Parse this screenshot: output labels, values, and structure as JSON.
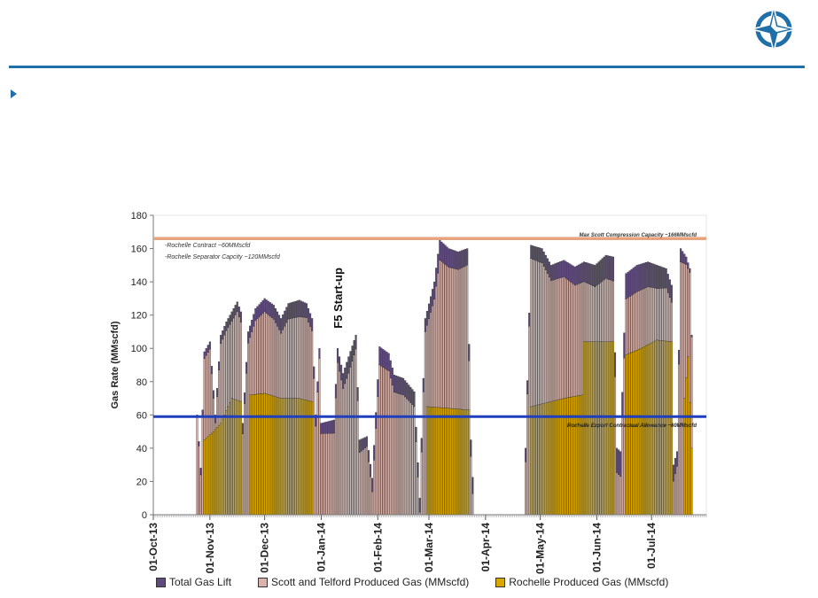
{
  "logo_icon": "compass-star-icon",
  "colors": {
    "header_rule": "#1f6fa8",
    "gas_lift": "#5e4a7c",
    "scott_telford": "#d9b4ac",
    "rochelle": "#d9a800",
    "max_compression_line": "#e9a37c",
    "export_line": "#1f3fbf"
  },
  "chart_data": {
    "type": "bar",
    "stacked": true,
    "ylabel": "Gas Rate (MMscfd)",
    "ylim": [
      0,
      180
    ],
    "yticks": [
      0,
      20,
      40,
      60,
      80,
      100,
      120,
      140,
      160,
      180
    ],
    "xlim": [
      "2013-10-01",
      "2014-07-31"
    ],
    "xtick_labels": [
      "01-Oct-13",
      "01-Nov-13",
      "01-Dec-13",
      "01-Jan-14",
      "01-Feb-14",
      "01-Mar-14",
      "01-Apr-14",
      "01-May-14",
      "01-Jun-14",
      "01-Jul-14"
    ],
    "xtick_dates": [
      "2013-10-01",
      "2013-11-01",
      "2013-12-01",
      "2014-01-01",
      "2014-02-01",
      "2014-03-01",
      "2014-04-01",
      "2014-05-01",
      "2014-06-01",
      "2014-07-01"
    ],
    "series": [
      {
        "name": "Total Gas Lift",
        "color": "#5e4a7c"
      },
      {
        "name": "Scott and Telford Produced Gas (MMscfd)",
        "color": "#d9b4ac"
      },
      {
        "name": "Rochelle Produced Gas (MMscfd)",
        "color": "#d9a800"
      }
    ],
    "total_profile": [
      {
        "x": "2013-10-24",
        "y": 0
      },
      {
        "x": "2013-10-25",
        "y": 60
      },
      {
        "x": "2013-10-27",
        "y": 28
      },
      {
        "x": "2013-10-29",
        "y": 98
      },
      {
        "x": "2013-11-01",
        "y": 104
      },
      {
        "x": "2013-11-04",
        "y": 60
      },
      {
        "x": "2013-11-07",
        "y": 108
      },
      {
        "x": "2013-11-10",
        "y": 116
      },
      {
        "x": "2013-11-13",
        "y": 122
      },
      {
        "x": "2013-11-16",
        "y": 128
      },
      {
        "x": "2013-11-18",
        "y": 122
      },
      {
        "x": "2013-11-19",
        "y": 55
      },
      {
        "x": "2013-11-22",
        "y": 110
      },
      {
        "x": "2013-11-26",
        "y": 124
      },
      {
        "x": "2013-12-01",
        "y": 130
      },
      {
        "x": "2013-12-06",
        "y": 126
      },
      {
        "x": "2013-12-10",
        "y": 118
      },
      {
        "x": "2013-12-14",
        "y": 127
      },
      {
        "x": "2013-12-20",
        "y": 129
      },
      {
        "x": "2013-12-24",
        "y": 127
      },
      {
        "x": "2013-12-27",
        "y": 118
      },
      {
        "x": "2013-12-29",
        "y": 60
      },
      {
        "x": "2013-12-31",
        "y": 100
      },
      {
        "x": "2014-01-01",
        "y": 55
      },
      {
        "x": "2014-01-08",
        "y": 57
      },
      {
        "x": "2014-01-10",
        "y": 100
      },
      {
        "x": "2014-01-13",
        "y": 85
      },
      {
        "x": "2014-01-16",
        "y": 95
      },
      {
        "x": "2014-01-20",
        "y": 108
      },
      {
        "x": "2014-01-22",
        "y": 45
      },
      {
        "x": "2014-01-26",
        "y": 47
      },
      {
        "x": "2014-01-29",
        "y": 22
      },
      {
        "x": "2014-02-02",
        "y": 101
      },
      {
        "x": "2014-02-07",
        "y": 97
      },
      {
        "x": "2014-02-10",
        "y": 84
      },
      {
        "x": "2014-02-15",
        "y": 82
      },
      {
        "x": "2014-02-18",
        "y": 78
      },
      {
        "x": "2014-02-21",
        "y": 74
      },
      {
        "x": "2014-02-24",
        "y": 10
      },
      {
        "x": "2014-02-27",
        "y": 118
      },
      {
        "x": "2014-03-04",
        "y": 140
      },
      {
        "x": "2014-03-07",
        "y": 165
      },
      {
        "x": "2014-03-12",
        "y": 160
      },
      {
        "x": "2014-03-17",
        "y": 158
      },
      {
        "x": "2014-03-22",
        "y": 160
      },
      {
        "x": "2014-03-24",
        "y": 45
      },
      {
        "x": "2014-03-26",
        "y": 0
      },
      {
        "x": "2014-04-22",
        "y": 0
      },
      {
        "x": "2014-04-23",
        "y": 40
      },
      {
        "x": "2014-04-26",
        "y": 162
      },
      {
        "x": "2014-05-02",
        "y": 160
      },
      {
        "x": "2014-05-07",
        "y": 150
      },
      {
        "x": "2014-05-14",
        "y": 153
      },
      {
        "x": "2014-05-20",
        "y": 149
      },
      {
        "x": "2014-05-25",
        "y": 152
      },
      {
        "x": "2014-05-31",
        "y": 150
      },
      {
        "x": "2014-06-06",
        "y": 156
      },
      {
        "x": "2014-06-10",
        "y": 155
      },
      {
        "x": "2014-06-12",
        "y": 40
      },
      {
        "x": "2014-06-14",
        "y": 38
      },
      {
        "x": "2014-06-17",
        "y": 145
      },
      {
        "x": "2014-06-23",
        "y": 150
      },
      {
        "x": "2014-06-29",
        "y": 152
      },
      {
        "x": "2014-07-04",
        "y": 150
      },
      {
        "x": "2014-07-09",
        "y": 148
      },
      {
        "x": "2014-07-12",
        "y": 138
      },
      {
        "x": "2014-07-13",
        "y": 30
      },
      {
        "x": "2014-07-15",
        "y": 38
      },
      {
        "x": "2014-07-17",
        "y": 160
      },
      {
        "x": "2014-07-20",
        "y": 155
      },
      {
        "x": "2014-07-22",
        "y": 148
      },
      {
        "x": "2014-07-23",
        "y": 108
      },
      {
        "x": "2014-07-24",
        "y": 0
      }
    ],
    "gas_lift_profile": [
      {
        "x": "2013-10-24",
        "y": 0
      },
      {
        "x": "2013-10-27",
        "y": 4
      },
      {
        "x": "2013-11-16",
        "y": 6
      },
      {
        "x": "2013-12-01",
        "y": 8
      },
      {
        "x": "2013-12-20",
        "y": 10
      },
      {
        "x": "2013-12-31",
        "y": 6
      },
      {
        "x": "2014-01-16",
        "y": 10
      },
      {
        "x": "2014-01-26",
        "y": 6
      },
      {
        "x": "2014-02-02",
        "y": 11
      },
      {
        "x": "2014-02-15",
        "y": 10
      },
      {
        "x": "2014-02-27",
        "y": 8
      },
      {
        "x": "2014-03-07",
        "y": 12
      },
      {
        "x": "2014-03-22",
        "y": 10
      },
      {
        "x": "2014-04-26",
        "y": 8
      },
      {
        "x": "2014-05-14",
        "y": 10
      },
      {
        "x": "2014-06-06",
        "y": 14
      },
      {
        "x": "2014-06-23",
        "y": 16
      },
      {
        "x": "2014-07-04",
        "y": 14
      },
      {
        "x": "2014-07-17",
        "y": 8
      },
      {
        "x": "2014-07-24",
        "y": 0
      }
    ],
    "rochelle_profile": [
      {
        "x": "2013-10-24",
        "y": 0
      },
      {
        "x": "2013-10-28",
        "y": 0
      },
      {
        "x": "2013-10-29",
        "y": 45
      },
      {
        "x": "2013-11-03",
        "y": 50
      },
      {
        "x": "2013-11-07",
        "y": 55
      },
      {
        "x": "2013-11-13",
        "y": 70
      },
      {
        "x": "2013-11-18",
        "y": 68
      },
      {
        "x": "2013-11-19",
        "y": 0
      },
      {
        "x": "2013-11-22",
        "y": 0
      },
      {
        "x": "2013-11-23",
        "y": 72
      },
      {
        "x": "2013-12-01",
        "y": 73
      },
      {
        "x": "2013-12-10",
        "y": 70
      },
      {
        "x": "2013-12-20",
        "y": 70
      },
      {
        "x": "2013-12-27",
        "y": 68
      },
      {
        "x": "2013-12-28",
        "y": 0
      },
      {
        "x": "2014-02-27",
        "y": 0
      },
      {
        "x": "2014-02-28",
        "y": 65
      },
      {
        "x": "2014-03-12",
        "y": 64
      },
      {
        "x": "2014-03-23",
        "y": 63
      },
      {
        "x": "2014-03-24",
        "y": 0
      },
      {
        "x": "2014-04-25",
        "y": 0
      },
      {
        "x": "2014-04-26",
        "y": 65
      },
      {
        "x": "2014-05-14",
        "y": 70
      },
      {
        "x": "2014-05-24",
        "y": 72
      },
      {
        "x": "2014-05-25",
        "y": 104
      },
      {
        "x": "2014-06-10",
        "y": 104
      },
      {
        "x": "2014-06-11",
        "y": 0
      },
      {
        "x": "2014-06-16",
        "y": 0
      },
      {
        "x": "2014-06-17",
        "y": 96
      },
      {
        "x": "2014-06-25",
        "y": 100
      },
      {
        "x": "2014-07-04",
        "y": 105
      },
      {
        "x": "2014-07-12",
        "y": 104
      },
      {
        "x": "2014-07-13",
        "y": 0
      },
      {
        "x": "2014-07-18",
        "y": 0
      },
      {
        "x": "2014-07-19",
        "y": 70
      },
      {
        "x": "2014-07-21",
        "y": 95
      },
      {
        "x": "2014-07-23",
        "y": 40
      },
      {
        "x": "2014-07-24",
        "y": 0
      }
    ],
    "reference_lines": [
      {
        "name": "max-scott-compression",
        "y": 166,
        "color": "#e9a37c",
        "label": "Max Scott Compression Capacity ~166MMscfd"
      },
      {
        "name": "rochelle-export",
        "y": 59,
        "color": "#1f3fbf",
        "label": "Rochelle Export Contractual Allowance ~60MMscfd"
      }
    ],
    "annotations": [
      {
        "name": "rochelle-contract-note",
        "text": "-Rochelle Contract ~60MMscfd"
      },
      {
        "name": "rochelle-separator-note",
        "text": "-Rochelle Separator Capcity ~120MMscfd"
      },
      {
        "name": "f5-startup-note",
        "text": "F5 Start-up",
        "x": "2014-01-10",
        "y": 112
      }
    ],
    "legend_position": "bottom"
  }
}
